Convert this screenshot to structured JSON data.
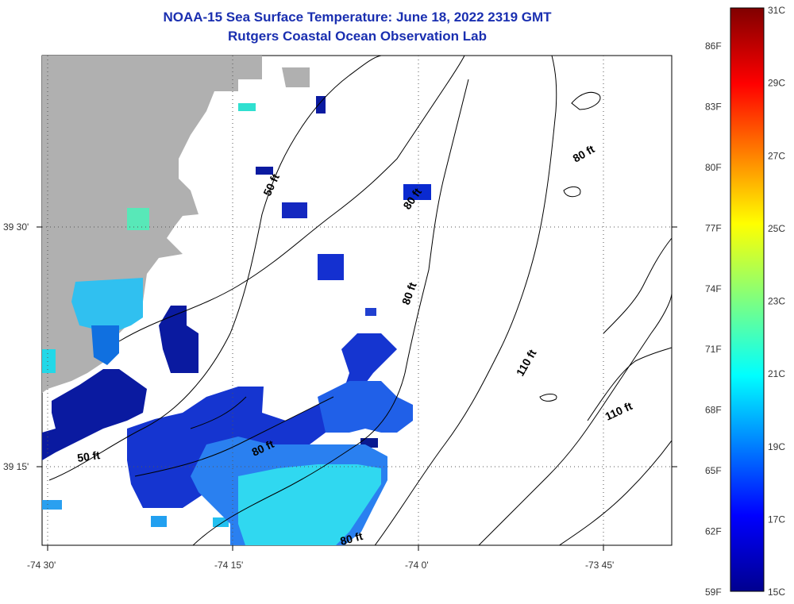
{
  "title": {
    "line1": "NOAA-15 Sea Surface Temperature:  June 18, 2022 2319 GMT",
    "line2": "Rutgers Coastal Ocean Observation Lab"
  },
  "colors": {
    "title": "#1a2fb0",
    "land": "#b0b0b0",
    "grid": "#555555",
    "contour": "#000000"
  },
  "axes": {
    "x_ticks": [
      "-74 30'",
      "-74 15'",
      "-74 0'",
      "-73 45'"
    ],
    "y_ticks": [
      "39 30'",
      "39 15'"
    ]
  },
  "depth_labels": [
    "50 ft",
    "80 ft",
    "80 ft",
    "80 ft",
    "80 ft",
    "110 ft",
    "110 ft",
    "50 ft",
    "80 ft"
  ],
  "colorbar": {
    "celsius": [
      "31C",
      "29C",
      "27C",
      "25C",
      "23C",
      "21C",
      "19C",
      "17C",
      "15C"
    ],
    "fahrenheit": [
      "86F",
      "83F",
      "80F",
      "77F",
      "74F",
      "71F",
      "68F",
      "65F",
      "62F",
      "59F"
    ],
    "range_c": [
      15,
      31
    ]
  }
}
